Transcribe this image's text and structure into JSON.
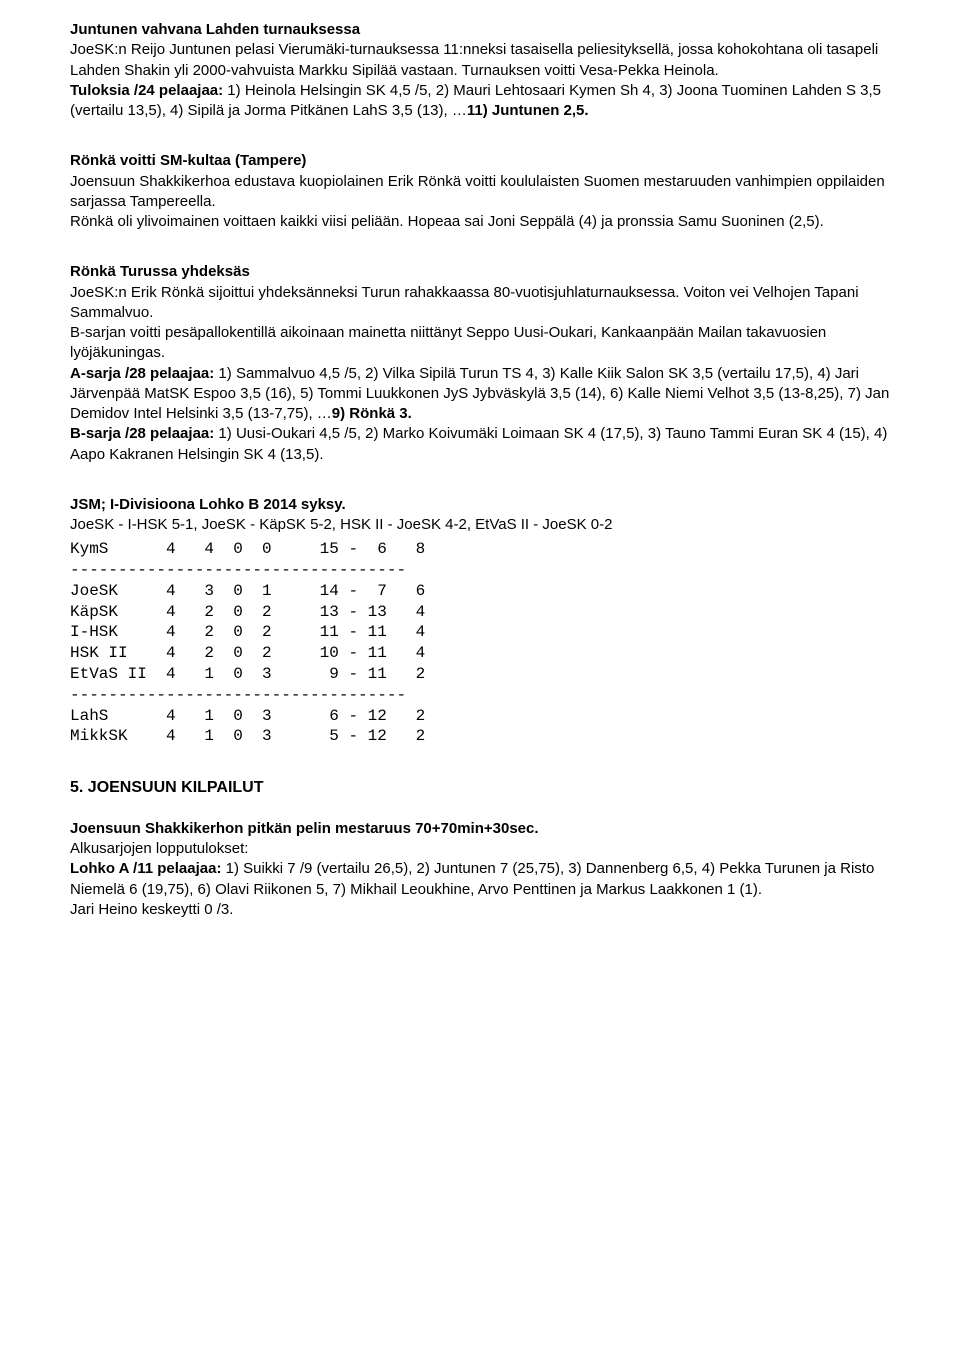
{
  "s1": {
    "heading": "Juntunen vahvana Lahden turnauksessa",
    "p1": "JoeSK:n Reijo Juntunen pelasi Vierumäki-turnauksessa 11:nneksi tasaisella peliesityksellä, jossa kohokohtana oli tasapeli Lahden Shakin yli 2000-vahvuista Markku Sipilää vastaan. Turnauksen voitti Vesa-Pekka Heinola.",
    "p2_bold": "Tuloksia /24 pelaajaa:",
    "p2_rest": " 1) Heinola Helsingin SK 4,5 /5, 2) Mauri Lehtosaari Kymen Sh 4, 3) Joona Tuominen Lahden S 3,5 (vertailu 13,5), 4) Sipilä ja Jorma Pitkänen LahS 3,5 (13), …",
    "p2_bold2": "11) Juntunen 2,5."
  },
  "s2": {
    "heading": "Rönkä voitti SM-kultaa (Tampere)",
    "p1": "Joensuun Shakkikerhoa edustava kuopiolainen Erik Rönkä voitti koululaisten Suomen mestaruuden vanhimpien oppilaiden sarjassa Tampereella.",
    "p2": "Rönkä oli ylivoimainen voittaen kaikki viisi peliään. Hopeaa sai Joni Seppälä (4) ja pronssia Samu Suoninen (2,5)."
  },
  "s3": {
    "heading": "Rönkä Turussa yhdeksäs",
    "p1": "JoeSK:n Erik Rönkä sijoittui yhdeksänneksi Turun rahakkaassa 80-vuotisjuhlaturnauksessa. Voiton vei Velhojen Tapani Sammalvuo.",
    "p2": "B-sarjan voitti pesäpallokentillä aikoinaan mainetta niittänyt Seppo Uusi-Oukari, Kankaanpään Mailan takavuosien lyöjäkuningas.",
    "p3_bold": "A-sarja /28 pelaajaa:",
    "p3_rest": " 1) Sammalvuo 4,5 /5, 2) Vilka Sipilä Turun TS 4, 3) Kalle Kiik Salon SK 3,5 (vertailu 17,5), 4) Jari Järvenpää MatSK Espoo 3,5 (16), 5) Tommi Luukkonen JyS Jybväskylä 3,5 (14), 6) Kalle Niemi Velhot 3,5 (13-8,25), 7) Jan Demidov Intel Helsinki 3,5 (13-7,75), …",
    "p3_bold2": "9) Rönkä 3.",
    "p4_bold": "B-sarja /28 pelaajaa:",
    "p4_rest": " 1) Uusi-Oukari 4,5 /5, 2) Marko Koivumäki Loimaan SK 4 (17,5), 3) Tauno Tammi Euran SK 4 (15), 4) Aapo Kakranen Helsingin SK 4 (13,5)."
  },
  "s4": {
    "heading": "JSM; I-Divisioona Lohko B 2014 syksy.",
    "p1": "JoeSK - I-HSK 5-1, JoeSK - KäpSK 5-2, HSK II - JoeSK 4-2, EtVaS II - JoeSK 0-2",
    "table": "KymS      4   4  0  0     15 -  6   8\n-----------------------------------\nJoeSK     4   3  0  1     14 -  7   6\nKäpSK     4   2  0  2     13 - 13   4\nI-HSK     4   2  0  2     11 - 11   4\nHSK II    4   2  0  2     10 - 11   4\nEtVaS II  4   1  0  3      9 - 11   2\n-----------------------------------\nLahS      4   1  0  3      6 - 12   2\nMikkSK    4   1  0  3      5 - 12   2"
  },
  "s5": {
    "heading": "5. JOENSUUN KILPAILUT",
    "sub_heading": "Joensuun Shakkikerhon pitkän pelin mestaruus 70+70min+30sec.",
    "p1": "Alkusarjojen lopputulokset:",
    "p2_bold": "Lohko A /11 pelaajaa:",
    "p2_rest": " 1) Suikki 7 /9 (vertailu 26,5), 2) Juntunen 7 (25,75), 3) Dannenberg 6,5, 4) Pekka Turunen ja Risto Niemelä 6 (19,75), 6) Olavi Riikonen 5, 7) Mikhail Leoukhine, Arvo Penttinen ja Markus Laakkonen 1 (1).",
    "p3": "Jari Heino keskeytti 0 /3."
  }
}
